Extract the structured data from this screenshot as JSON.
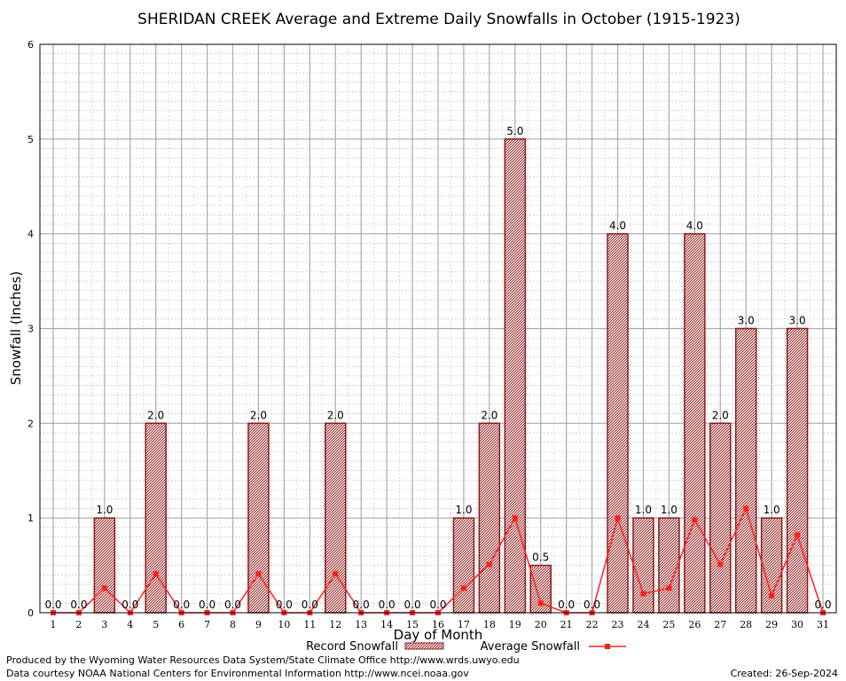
{
  "chart_data": {
    "type": "bar",
    "title": "SHERIDAN CREEK Average and Extreme Daily Snowfalls in October (1915-1923)",
    "xlabel": "Day of Month",
    "ylabel": "Snowfall (Inches)",
    "ylim": [
      0,
      6
    ],
    "yticks": [
      "0",
      "1",
      "2",
      "3",
      "4",
      "5",
      "6"
    ],
    "grid": true,
    "legend_position": "bottom",
    "categories": [
      "1",
      "2",
      "3",
      "4",
      "5",
      "6",
      "7",
      "8",
      "9",
      "10",
      "11",
      "12",
      "13",
      "14",
      "15",
      "16",
      "17",
      "18",
      "19",
      "20",
      "21",
      "22",
      "23",
      "24",
      "25",
      "26",
      "27",
      "28",
      "29",
      "30",
      "31"
    ],
    "series": [
      {
        "name": "Record Snowfall",
        "kind": "bar",
        "color": "#8b1a1a",
        "values": [
          0.0,
          0.0,
          1.0,
          0.0,
          2.0,
          0.0,
          0.0,
          0.0,
          2.0,
          0.0,
          0.0,
          2.0,
          0.0,
          0.0,
          0.0,
          0.0,
          1.0,
          2.0,
          5.0,
          0.5,
          0.0,
          0.0,
          4.0,
          1.0,
          1.0,
          4.0,
          2.0,
          3.0,
          1.0,
          3.0,
          0.0
        ],
        "labels": [
          "0.0",
          "0.0",
          "1.0",
          "0.0",
          "2.0",
          "0.0",
          "0.0",
          "0.0",
          "2.0",
          "0.0",
          "0.0",
          "2.0",
          "0.0",
          "0.0",
          "0.0",
          "0.0",
          "1.0",
          "2.0",
          "5.0",
          "0.5",
          "0.0",
          "0.0",
          "4.0",
          "1.0",
          "1.0",
          "4.0",
          "2.0",
          "3.0",
          "1.0",
          "3.0",
          "0.0"
        ]
      },
      {
        "name": "Average Snowfall",
        "kind": "line",
        "color": "#ff2020",
        "values": [
          0.0,
          0.0,
          0.26,
          0.0,
          0.41,
          0.0,
          0.0,
          0.0,
          0.41,
          0.0,
          0.0,
          0.41,
          0.0,
          0.0,
          0.0,
          0.0,
          0.26,
          0.51,
          1.0,
          0.1,
          0.0,
          0.0,
          1.0,
          0.2,
          0.26,
          0.98,
          0.51,
          1.1,
          0.18,
          0.82,
          0.0
        ]
      }
    ]
  },
  "footer": {
    "producer": "Produced by the Wyoming Water Resources Data System/State Climate Office http://www.wrds.uwyo.edu",
    "courtesy": "Data courtesy NOAA National Centers for Environmental Information http://www.ncei.noaa.gov",
    "created": "Created:  26-Sep-2024"
  }
}
